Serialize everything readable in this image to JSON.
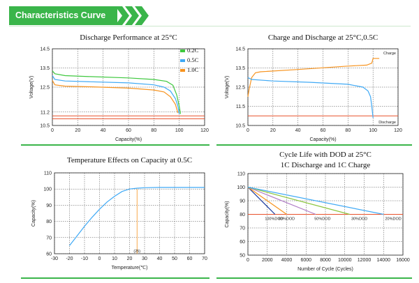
{
  "header": {
    "title": "Characteristics Curve",
    "accent": "#3ab54a"
  },
  "chart_data": [
    {
      "id": "discharge",
      "type": "line",
      "title": "Discharge Performance at 25°C",
      "xlabel": "Capacity(%)",
      "ylabel": "Voltage(V)",
      "xlim": [
        0,
        120
      ],
      "ylim": [
        10.5,
        14.5
      ],
      "xticks": [
        0,
        20,
        40,
        60,
        80,
        100,
        120
      ],
      "yticks": [
        10.5,
        11.2,
        12.5,
        13.5,
        14.5
      ],
      "legend_position": "top-right",
      "series": [
        {
          "name": "0.2C",
          "color": "#3ec83e",
          "x": [
            0,
            2,
            10,
            30,
            60,
            80,
            90,
            95,
            98,
            100,
            101
          ],
          "y": [
            13.35,
            13.2,
            13.1,
            13.05,
            12.98,
            12.9,
            12.8,
            12.6,
            12.1,
            11.5,
            11.1
          ]
        },
        {
          "name": "0.5C",
          "color": "#3fa9f5",
          "x": [
            0,
            2,
            10,
            30,
            60,
            80,
            88,
            93,
            97,
            99,
            100
          ],
          "y": [
            13.1,
            12.9,
            12.82,
            12.78,
            12.72,
            12.62,
            12.5,
            12.3,
            11.9,
            11.5,
            11.1
          ]
        },
        {
          "name": "1.0C",
          "color": "#f7931e",
          "x": [
            0,
            2,
            10,
            30,
            60,
            80,
            88,
            93,
            97,
            99
          ],
          "y": [
            12.85,
            12.62,
            12.55,
            12.52,
            12.45,
            12.35,
            12.25,
            12.0,
            11.6,
            11.15
          ]
        }
      ],
      "reference_lines": [
        {
          "y": 11.0,
          "color": "#e8502a"
        },
        {
          "y": 10.85,
          "color": "#e8502a"
        }
      ]
    },
    {
      "id": "charge_discharge",
      "type": "line",
      "title": "Charge and Discharge at 25°C,0.5C",
      "xlabel": "Capacity(%)",
      "ylabel": "Voltage(V)",
      "xlim": [
        0,
        120
      ],
      "ylim": [
        10.5,
        14.5
      ],
      "xticks": [
        0,
        20,
        40,
        60,
        80,
        100,
        120
      ],
      "yticks": [
        10.5,
        11.5,
        12.5,
        13.5,
        14.5
      ],
      "series": [
        {
          "name": "Charge",
          "color": "#f7931e",
          "x": [
            0,
            1,
            3,
            6,
            10,
            40,
            80,
            95,
            99,
            100,
            105
          ],
          "y": [
            12.0,
            12.4,
            13.0,
            13.25,
            13.3,
            13.42,
            13.6,
            13.65,
            13.75,
            14.0,
            14.0
          ]
        },
        {
          "name": "Discharge",
          "color": "#3fa9f5",
          "x": [
            0,
            3,
            20,
            50,
            80,
            92,
            96,
            98,
            99,
            100
          ],
          "y": [
            13.0,
            12.9,
            12.82,
            12.75,
            12.65,
            12.5,
            12.3,
            12.0,
            11.5,
            10.9
          ]
        }
      ],
      "reference_lines": [
        {
          "y": 11.0,
          "color": "#e8502a"
        }
      ]
    },
    {
      "id": "temperature",
      "type": "line",
      "title": "Temperature Effects on Capacity at 0.5C",
      "xlabel": "Temperature(℃)",
      "ylabel": "Capacity(%)",
      "xlim": [
        -30,
        70
      ],
      "ylim": [
        60,
        110
      ],
      "xticks": [
        -30,
        -20,
        -10,
        0,
        10,
        20,
        30,
        40,
        50,
        60,
        70
      ],
      "yticks": [
        60,
        70,
        80,
        90,
        100,
        110
      ],
      "series": [
        {
          "name": "",
          "color": "#3fa9f5",
          "x": [
            -20,
            -15,
            -10,
            -5,
            0,
            5,
            10,
            15,
            20,
            25,
            30,
            40,
            50,
            60,
            70
          ],
          "y": [
            65,
            71,
            77,
            82.5,
            87.5,
            92,
            95.5,
            98.5,
            100,
            100.5,
            100.8,
            101,
            101,
            101,
            101
          ]
        }
      ],
      "reference_lines": [
        {
          "x": 25,
          "color": "#f7931e",
          "label": "(25)"
        }
      ]
    },
    {
      "id": "cycle_life",
      "type": "line",
      "title": "Cycle Life with DOD at 25°C",
      "subtitle": "1C Discharge and 1C Charge",
      "xlabel": "Number of Cycle (Cycles)",
      "ylabel": "Capacity(%)",
      "xlim": [
        0,
        16000
      ],
      "ylim": [
        50,
        110
      ],
      "xticks": [
        0,
        2000,
        4000,
        6000,
        8000,
        10000,
        12000,
        14000,
        16000
      ],
      "yticks": [
        50,
        60,
        70,
        80,
        90,
        100,
        110
      ],
      "series": [
        {
          "name": "100%DOD",
          "color": "#1a3a9f",
          "x": [
            0,
            2800
          ],
          "y": [
            100,
            80
          ]
        },
        {
          "name": "80%DOD",
          "color": "#f7931e",
          "x": [
            0,
            4000
          ],
          "y": [
            100,
            80
          ]
        },
        {
          "name": "50%DOD",
          "color": "#b07cc6",
          "x": [
            0,
            7000
          ],
          "y": [
            100,
            80
          ]
        },
        {
          "name": "30%DOD",
          "color": "#8cc63f",
          "x": [
            0,
            10500
          ],
          "y": [
            100,
            80
          ]
        },
        {
          "name": "20%DOD",
          "color": "#3fa9f5",
          "x": [
            0,
            14000
          ],
          "y": [
            100,
            80
          ]
        }
      ],
      "annotations": [
        {
          "text": "100%DOD",
          "x": 2700,
          "y": 77
        },
        {
          "text": "80%DOD",
          "x": 4000,
          "y": 77
        },
        {
          "text": "50%DOD",
          "x": 7700,
          "y": 77
        },
        {
          "text": "30%DOD",
          "x": 11500,
          "y": 77
        },
        {
          "text": "20%DOD",
          "x": 15000,
          "y": 77
        }
      ],
      "reference_lines": [
        {
          "y": 80,
          "color": "#e8502a"
        }
      ]
    }
  ]
}
